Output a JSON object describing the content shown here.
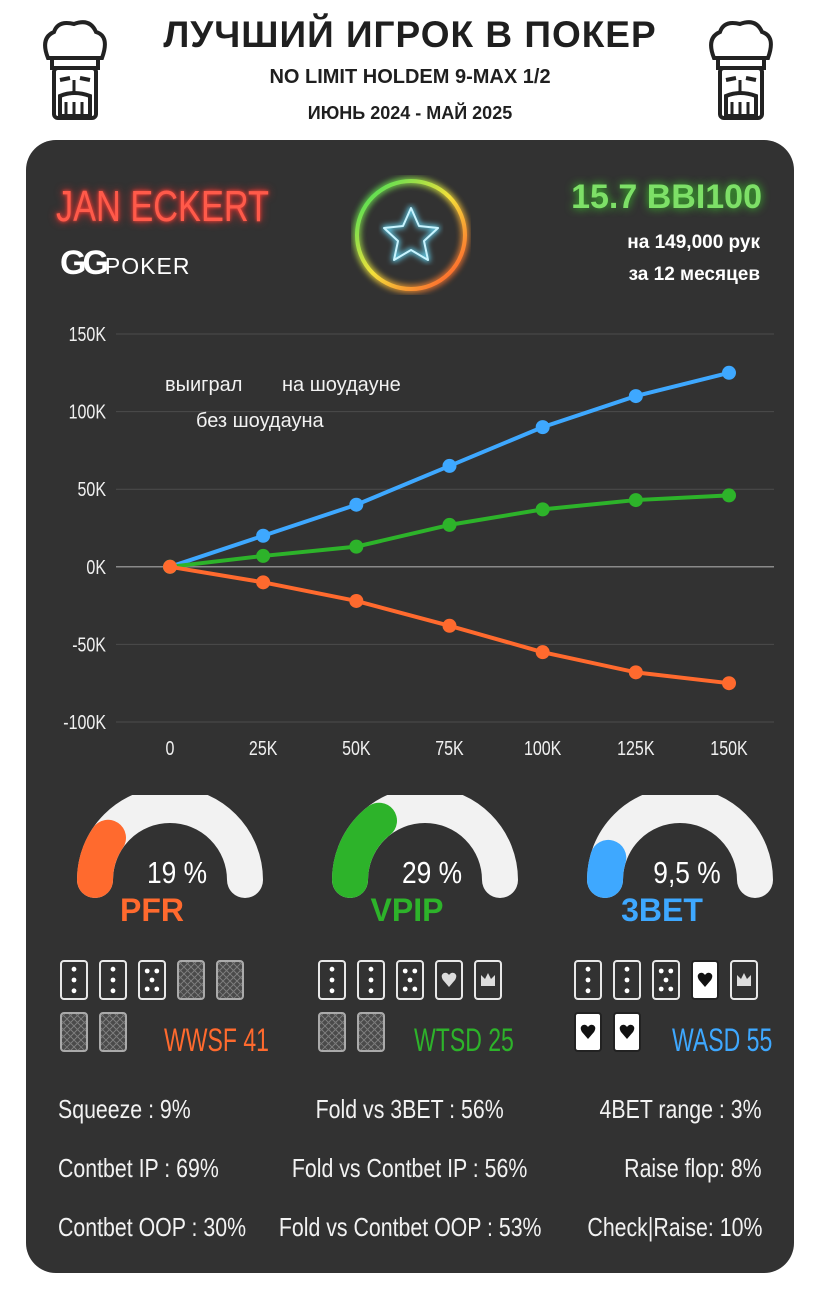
{
  "header": {
    "title": "ЛУЧШИЙ ИГРОК В ПОКЕР",
    "game": "NO LIMIT HOLDEM 9-MAX 1/2",
    "period": "ИЮНЬ 2024 - МАЙ 2025"
  },
  "player": {
    "name": "JAN ECKERT",
    "room_logo_gg": "GG",
    "room_logo_poker": "POKER",
    "winrate": "15.7 BBI100",
    "hands": "на 149,000 рук",
    "months": "за  12 месяцев"
  },
  "colors": {
    "red": "#ff6a2e",
    "green": "#2db32a",
    "blue": "#3ea8ff",
    "card": "#323232"
  },
  "chart_data": {
    "type": "line",
    "x": [
      "0",
      "25K",
      "50K",
      "75K",
      "100K",
      "125K",
      "150K"
    ],
    "x_values": [
      0,
      25000,
      50000,
      75000,
      100000,
      125000,
      150000
    ],
    "y_ticks": [
      "150K",
      "100K",
      "50K",
      "0K",
      "-50K",
      "-100K"
    ],
    "ylim": [
      -100000,
      150000
    ],
    "grid": true,
    "legend": "top-left",
    "series": [
      {
        "name": "на шоудауне",
        "color": "#3ea8ff",
        "values": [
          0,
          20000,
          40000,
          65000,
          90000,
          110000,
          125000
        ]
      },
      {
        "name": "выиграл",
        "color": "#2db32a",
        "values": [
          0,
          7000,
          13000,
          27000,
          37000,
          43000,
          46000
        ]
      },
      {
        "name": "без шоудауна",
        "color": "#ff6a2e",
        "values": [
          0,
          -10000,
          -22000,
          -38000,
          -55000,
          -68000,
          -75000
        ]
      }
    ]
  },
  "gauges": [
    {
      "pct": "19 %",
      "label": "PFR",
      "value": 0.19,
      "color": "#ff6a2e"
    },
    {
      "pct": "29 %",
      "label": "VPIP",
      "value": 0.29,
      "color": "#2db32a"
    },
    {
      "pct": "9,5 %",
      "label": "3BET",
      "value": 0.095,
      "color": "#3ea8ff"
    }
  ],
  "showdown": [
    {
      "label": "WWSF 41",
      "color": "#ff6a2e"
    },
    {
      "label": "WTSD 25",
      "color": "#2db32a"
    },
    {
      "label": "WASD 55",
      "color": "#3ea8ff"
    }
  ],
  "stats": {
    "left": [
      "Squeeze : 9%",
      "Contbet IP : 69%",
      "Contbet OOP : 30%"
    ],
    "center": [
      "Fold vs 3BET : 56%",
      "Fold vs Contbet IP : 56%",
      "Fold vs Contbet OOP : 53%"
    ],
    "right": [
      "4BET range : 3%",
      "Raise flop: 8%",
      "Check|Raise: 10%"
    ]
  }
}
